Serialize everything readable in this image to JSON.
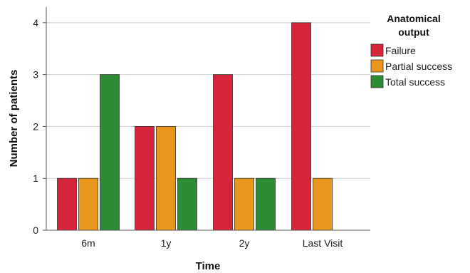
{
  "chart_data": {
    "type": "bar",
    "title": "",
    "xlabel": "Time",
    "ylabel": "Number of patients",
    "categories": [
      "6m",
      "1y",
      "2y",
      "Last Visit"
    ],
    "ylim": [
      0,
      4.3
    ],
    "yticks": [
      "0",
      "1",
      "2",
      "3",
      "4"
    ],
    "grid": "horizontal",
    "legend": {
      "title_lines": [
        "Anatomical",
        "output"
      ],
      "placement": "right"
    },
    "series": [
      {
        "name": "Failure",
        "color": "#d6243a",
        "values": [
          1,
          2,
          3,
          4
        ]
      },
      {
        "name": "Partial success",
        "color": "#e8961c",
        "values": [
          1,
          2,
          1,
          1
        ]
      },
      {
        "name": "Total success",
        "color": "#2e8b35",
        "values": [
          3,
          1,
          1,
          0
        ]
      }
    ]
  }
}
